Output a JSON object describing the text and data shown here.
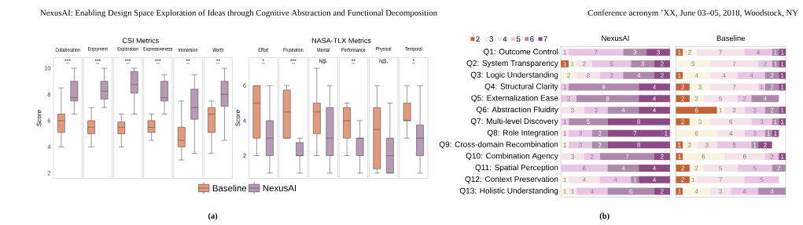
{
  "chart_data": [
    {
      "type": "other",
      "title": "NexusAI: Enabling Design Space Exploration of Ideas through Cognitive Abstraction and Functional Decomposition",
      "annotations": [
        "Conference acronym ’XX, June 03–05, 2018, Woodstock, NY",
        "CSI Metrics",
        "NASA-TLX Metrics",
        "(a)",
        "(b)"
      ]
    },
    {
      "type": "box",
      "categories": [
        "Collaboration",
        "Enjoyment",
        "Exploration",
        "Expressiveness",
        "Immersion",
        "Worth"
      ],
      "ylim": [
        1.6,
        10.8
      ],
      "yticks": [
        2,
        4,
        6,
        8,
        10
      ],
      "ylabel": "Score",
      "legend": "bottom",
      "annotations": [
        "***",
        "***",
        "***",
        "***",
        "**",
        "**"
      ],
      "series": [
        {
          "name": "Baseline",
          "color": "#e49a7a",
          "boxes": [
            {
              "low": 4,
              "q1": 5.1,
              "median": 6,
              "q3": 6.5,
              "high": 8.5
            },
            {
              "low": 4,
              "q1": 5,
              "median": 5.5,
              "q3": 6,
              "high": 7
            },
            {
              "low": 4,
              "q1": 5,
              "median": 5.5,
              "q3": 5.9,
              "high": 6.5
            },
            {
              "low": 4.5,
              "q1": 5.1,
              "median": 5.5,
              "q3": 6,
              "high": 6.5
            },
            {
              "low": 3,
              "q1": 4,
              "median": 4.5,
              "q3": 5.5,
              "high": 7.5
            },
            {
              "low": 3.5,
              "q1": 5.1,
              "median": 6.5,
              "q3": 7,
              "high": 7.5
            }
          ]
        },
        {
          "name": "NexusAI",
          "color": "#b79bb5",
          "boxes": [
            {
              "low": 6.5,
              "q1": 7.5,
              "median": 7.75,
              "q3": 9,
              "high": 10
            },
            {
              "low": 7,
              "q1": 7.65,
              "median": 8.25,
              "q3": 9,
              "high": 10
            },
            {
              "low": 6.5,
              "q1": 8.1,
              "median": 8.75,
              "q3": 9.75,
              "high": 10
            },
            {
              "low": 6.5,
              "q1": 7.5,
              "median": 7.75,
              "q3": 9,
              "high": 9.5
            },
            {
              "low": 3.5,
              "q1": 6.1,
              "median": 7,
              "q3": 8.4,
              "high": 9.5
            },
            {
              "low": 4.5,
              "q1": 7.1,
              "median": 8,
              "q3": 9,
              "high": 10
            }
          ]
        }
      ]
    },
    {
      "type": "box",
      "categories": [
        "Effort",
        "Frustration",
        "Mental",
        "Performance",
        "Physical",
        "Temporal"
      ],
      "ylim": [
        0.7,
        7.6
      ],
      "yticks": [
        2,
        4,
        6
      ],
      "ylabel": "Score",
      "annotations": [
        "*",
        "***",
        "NS.",
        "**",
        "NS.",
        "*"
      ],
      "series": [
        {
          "color": "#e49a7a",
          "boxes": [
            {
              "low": 2,
              "q1": 3,
              "median": 5,
              "q3": 6,
              "high": 6
            },
            {
              "low": 3,
              "q1": 3,
              "median": 4.5,
              "q3": 5.75,
              "high": 6
            },
            {
              "low": 2,
              "q1": 3.25,
              "median": 4.5,
              "q3": 5,
              "high": 7
            },
            {
              "low": 2,
              "q1": 3,
              "median": 4,
              "q3": 4.75,
              "high": 5
            },
            {
              "low": 1,
              "q1": 1.25,
              "median": 3.5,
              "q3": 4.75,
              "high": 6
            },
            {
              "low": 3,
              "q1": 4,
              "median": 4,
              "q3": 5,
              "high": 6
            }
          ]
        },
        {
          "color": "#b79bb5",
          "boxes": [
            {
              "low": 1,
              "q1": 2,
              "median": 3,
              "q3": 4,
              "high": 6
            },
            {
              "low": 1,
              "q1": 2,
              "median": 2,
              "q3": 2.75,
              "high": 3
            },
            {
              "low": 1,
              "q1": 2,
              "median": 3,
              "q3": 4.75,
              "high": 6
            },
            {
              "low": 1,
              "q1": 2,
              "median": 3,
              "q3": 3,
              "high": 4
            },
            {
              "low": 1,
              "q1": 1,
              "median": 2,
              "q3": 3,
              "high": 5
            },
            {
              "low": 1,
              "q1": 2,
              "median": 3,
              "q3": 3.75,
              "high": 6
            }
          ]
        }
      ]
    },
    {
      "type": "bar",
      "orientation": "horizontal",
      "stacked": true,
      "title": "NexusAI",
      "data_labels": true,
      "legend": "top left",
      "tick_labels": "y",
      "categories": [
        "Q1: Outcome Control",
        "Q2: System Transparency",
        "Q3: Logic Understanding",
        "Q4: Structural Clarity",
        "Q5: Externalization Ease",
        "Q6: Abstraction Fluidity",
        "Q7: Multi-level Discovery",
        "Q8: Role Integration",
        "Q9: Cross-domain Recombination",
        "Q10: Combination Agency",
        "Q11: Spatial Perception",
        "Q12: Context Preservation",
        "Q13: Holistic Understanding"
      ],
      "series": [
        {
          "name": "2",
          "color": "#c3633a",
          "values": [
            null,
            1,
            null,
            null,
            null,
            null,
            null,
            null,
            null,
            null,
            null,
            null,
            null
          ]
        },
        {
          "name": "3",
          "color": "#f8f4e0",
          "values": [
            null,
            1,
            2,
            null,
            null,
            null,
            null,
            null,
            1,
            null,
            null,
            1,
            1
          ]
        },
        {
          "name": "4",
          "color": "#f4e4ea",
          "values": [
            1,
            2,
            3,
            null,
            null,
            3,
            null,
            1,
            null,
            3,
            null,
            4,
            1
          ]
        },
        {
          "name": "5",
          "color": "#e9c5e4",
          "values": [
            7,
            5,
            3,
            1,
            2,
            3,
            1,
            3,
            3,
            2,
            6,
            4,
            4
          ]
        },
        {
          "name": "6",
          "color": "#ae8aaa",
          "values": [
            3,
            3,
            4,
            9,
            8,
            4,
            5,
            2,
            2,
            7,
            4,
            1,
            6
          ]
        },
        {
          "name": "7",
          "color": "#8d4b86",
          "values": [
            3,
            2,
            2,
            4,
            4,
            4,
            8,
            7,
            8,
            2,
            4,
            4,
            2
          ]
        },
        {
          "color": "#8d4b86",
          "values": [
            null,
            null,
            null,
            null,
            null,
            null,
            null,
            1,
            null,
            null,
            null,
            null,
            null
          ]
        }
      ]
    },
    {
      "type": "bar",
      "orientation": "horizontal",
      "stacked": true,
      "title": "Baseline",
      "data_labels": true,
      "categories": [
        null,
        null,
        null,
        null,
        null,
        null,
        null,
        null,
        null,
        null,
        null,
        null,
        null
      ],
      "series": [
        {
          "color": "#c3633a",
          "values": [
            1,
            null,
            1,
            2,
            2,
            6,
            2,
            null,
            1,
            1,
            2,
            2,
            1
          ]
        },
        {
          "color": "#f8f4e0",
          "values": [
            2,
            5,
            4,
            3,
            2,
            1,
            3,
            6,
            2,
            6,
            2,
            1,
            4
          ]
        },
        {
          "color": "#f4e4ea",
          "values": [
            7,
            7,
            4,
            7,
            5,
            3,
            6,
            4,
            3,
            6,
            5,
            7,
            3
          ]
        },
        {
          "color": "#e9c5e4",
          "values": [
            4,
            2,
            4,
            1,
            2,
            3,
            3,
            3,
            5,
            2,
            5,
            5,
            4
          ]
        },
        {
          "color": "#ae8aaa",
          "values": [
            1,
            1,
            2,
            2,
            4,
            2,
            1,
            1,
            1,
            null,
            2,
            null,
            4
          ]
        },
        {
          "color": "#8d4b86",
          "values": [
            1,
            1,
            1,
            1,
            null,
            1,
            1,
            1,
            2,
            1,
            null,
            null,
            null
          ]
        }
      ]
    }
  ]
}
